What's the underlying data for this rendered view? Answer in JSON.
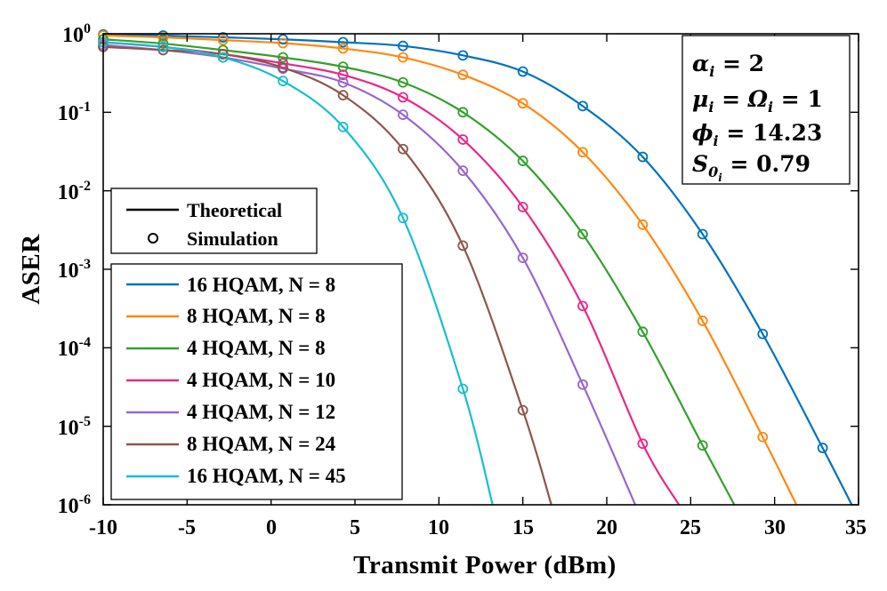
{
  "chart_data": {
    "type": "line",
    "title": "",
    "xlabel": "Transmit Power (dBm)",
    "ylabel": "ASER",
    "xlim": [
      -10,
      35
    ],
    "ylim_log10": [
      -6,
      0
    ],
    "y_scale": "log",
    "xticks": [
      -10,
      -5,
      0,
      5,
      10,
      15,
      20,
      25,
      30,
      35
    ],
    "xtick_labels": [
      "-10",
      "-5",
      "0",
      "5",
      "10",
      "15",
      "20",
      "25",
      "30",
      "35"
    ],
    "yticks": [
      {
        "base": "10",
        "exp": "0"
      },
      {
        "base": "10",
        "exp": "-1"
      },
      {
        "base": "10",
        "exp": "-2"
      },
      {
        "base": "10",
        "exp": "-3"
      },
      {
        "base": "10",
        "exp": "-4"
      },
      {
        "base": "10",
        "exp": "-5"
      },
      {
        "base": "10",
        "exp": "-6"
      }
    ],
    "marker_x": [
      -10,
      -6.43,
      -2.86,
      0.71,
      4.29,
      7.86,
      11.43,
      15.0,
      18.57,
      22.14,
      25.71,
      29.29,
      32.86
    ],
    "legend_style": {
      "theoretical": "Theoretical",
      "simulation": "Simulation"
    },
    "series": [
      {
        "name": "16 HQAM, N = 8",
        "color": "#0072BD",
        "x": [
          -10,
          -6.43,
          -2.86,
          0.71,
          4.29,
          7.86,
          11.43,
          15.0,
          18.57,
          22.14,
          25.71,
          29.29,
          32.86,
          34.6
        ],
        "y": [
          0.98,
          0.95,
          0.9,
          0.85,
          0.78,
          0.7,
          0.53,
          0.33,
          0.12,
          0.027,
          0.0028,
          0.00015,
          5.3e-06,
          1e-06
        ]
      },
      {
        "name": "8 HQAM, N = 8",
        "color": "#FF8811",
        "x": [
          -10,
          -6.43,
          -2.86,
          0.71,
          4.29,
          7.86,
          11.43,
          15.0,
          18.57,
          22.14,
          25.71,
          29.29,
          31.3
        ],
        "y": [
          0.95,
          0.9,
          0.83,
          0.76,
          0.65,
          0.5,
          0.3,
          0.13,
          0.031,
          0.0037,
          0.00022,
          7.3e-06,
          1e-06
        ]
      },
      {
        "name": "4 HQAM, N = 8",
        "color": "#33A02C",
        "x": [
          -10,
          -6.43,
          -2.86,
          0.71,
          4.29,
          7.86,
          11.43,
          15.0,
          18.57,
          22.14,
          25.71,
          27.6
        ],
        "y": [
          0.85,
          0.75,
          0.62,
          0.5,
          0.38,
          0.24,
          0.1,
          0.024,
          0.0028,
          0.00016,
          5.7e-06,
          1e-06
        ]
      },
      {
        "name": "4 HQAM, N = 10",
        "color": "#E7298A",
        "x": [
          -10,
          -6.43,
          -2.86,
          0.71,
          4.29,
          7.86,
          11.43,
          15.0,
          18.57,
          22.14,
          24.3
        ],
        "y": [
          0.78,
          0.68,
          0.55,
          0.42,
          0.3,
          0.155,
          0.045,
          0.0062,
          0.00034,
          6e-06,
          1e-06
        ]
      },
      {
        "name": "4 HQAM, N = 12",
        "color": "#9966CC",
        "x": [
          -10,
          -6.43,
          -2.86,
          0.71,
          4.29,
          7.86,
          11.43,
          15.0,
          18.57,
          21.7
        ],
        "y": [
          0.72,
          0.62,
          0.5,
          0.36,
          0.24,
          0.093,
          0.018,
          0.0014,
          3.4e-05,
          1e-06
        ]
      },
      {
        "name": "8 HQAM, N = 24",
        "color": "#8C564B",
        "x": [
          -10,
          -6.43,
          -2.86,
          0.71,
          4.29,
          7.86,
          11.43,
          15.0,
          16.7
        ],
        "y": [
          0.68,
          0.62,
          0.55,
          0.37,
          0.165,
          0.034,
          0.002,
          1.6e-05,
          1e-06
        ]
      },
      {
        "name": "16 HQAM, N = 45",
        "color": "#17BECF",
        "x": [
          -10,
          -6.43,
          -2.86,
          0.71,
          4.29,
          7.86,
          11.43,
          13.2
        ],
        "y": [
          0.78,
          0.68,
          0.5,
          0.25,
          0.065,
          0.0045,
          3e-05,
          1e-06
        ]
      }
    ]
  },
  "params": {
    "alpha": {
      "var": "α",
      "sub": "i",
      "rest": " = 2"
    },
    "mu": {
      "var1": "μ",
      "sub1": "i",
      "eq": " = ",
      "var2": "Ω",
      "sub2": "i",
      "rest": " = 1"
    },
    "phi": {
      "var": "ϕ",
      "sub": "i",
      "rest": " = 14.23"
    },
    "s0": {
      "var": "S",
      "sub": "0",
      "subsub": "i",
      "rest": " = 0.79"
    }
  }
}
